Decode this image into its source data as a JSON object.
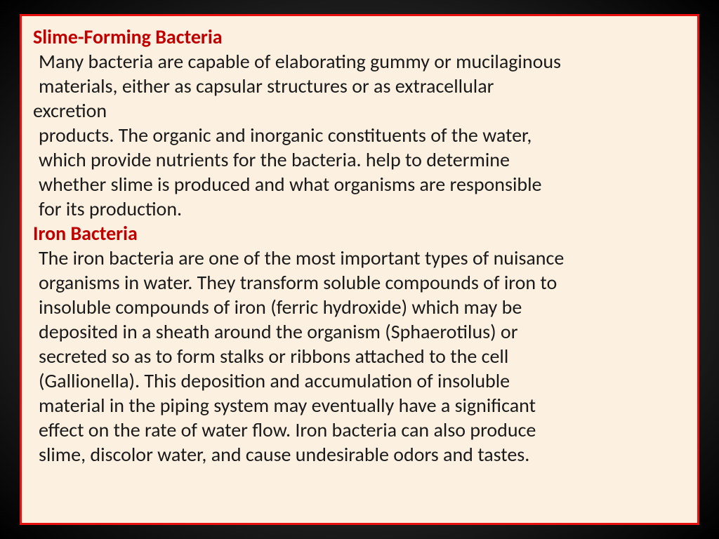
{
  "slide": {
    "background_color": "#fcf0e0",
    "border_color": "#e81010",
    "heading_color": "#c00000",
    "text_color": "#1a1a1a",
    "font_family": "Calibri",
    "font_size_pt": 28,
    "section1": {
      "heading": "Slime-Forming Bacteria",
      "line1": "Many bacteria are capable of elaborating gummy or mucilaginous",
      "line2": "materials, either as capsular structures or as extracellular",
      "line3": "excretion",
      "line4": "products. The organic and inorganic constituents of the water,",
      "line5": "which provide nutrients for the bacteria. help to determine",
      "line6": "whether slime is produced and what organisms are responsible",
      "line7": "for its production."
    },
    "section2": {
      "heading": "Iron Bacteria",
      "line1": "The iron bacteria are one of the most important types of nuisance",
      "line2": "organisms in water. They transform soluble compounds of iron to",
      "line3": "insoluble compounds of iron (ferric hydroxide) which may be",
      "line4": "deposited in a sheath around the organism (Sphaerotilus) or",
      "line5": "secreted so as to form stalks or ribbons attached to the cell",
      "line6": "(Gallionella). This deposition and accumulation of insoluble",
      "line7": "material in the piping system may eventually have a significant",
      "line8": "effect on the rate of water flow. Iron bacteria can also produce",
      "line9": "slime, discolor water, and cause undesirable odors and tastes."
    }
  }
}
